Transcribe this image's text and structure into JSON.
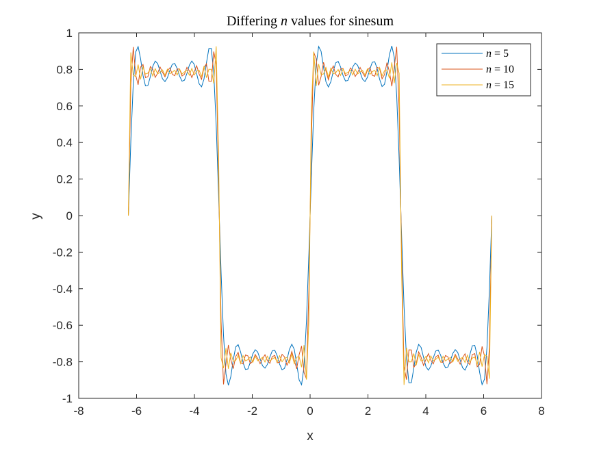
{
  "chart_data": {
    "type": "line",
    "title": "Differing n values for sinesum",
    "title_prefix": "Differing",
    "title_var": "n",
    "title_suffix": "values for sinesum",
    "xlabel": "x",
    "ylabel": "y",
    "xlim": [
      -8,
      8
    ],
    "ylim": [
      -1,
      1
    ],
    "xticks": [
      -8,
      -6,
      -4,
      -2,
      0,
      2,
      4,
      6,
      8
    ],
    "xtick_labels": [
      "-8",
      "-6",
      "-4",
      "-2",
      "0",
      "2",
      "4",
      "6",
      "8"
    ],
    "yticks": [
      -1,
      -0.8,
      -0.6,
      -0.4,
      -0.2,
      0,
      0.2,
      0.4,
      0.6,
      0.8,
      1
    ],
    "ytick_labels": [
      "-1",
      "-0.8",
      "-0.6",
      "-0.4",
      "-0.2",
      "0",
      "0.2",
      "0.4",
      "0.6",
      "0.8",
      "1"
    ],
    "grid": false,
    "box": true,
    "legend_position": "top-right",
    "x_range": [
      -6.2832,
      6.2832
    ],
    "points": 150,
    "series": [
      {
        "name": "n = 5",
        "legend_var": "n",
        "legend_value": "5",
        "n": 5,
        "color": "#0072BD"
      },
      {
        "name": "n = 10",
        "legend_var": "n",
        "legend_value": "10",
        "n": 10,
        "color": "#D95319"
      },
      {
        "name": "n = 15",
        "legend_var": "n",
        "legend_value": "15",
        "n": 15,
        "color": "#EDB120"
      }
    ]
  }
}
